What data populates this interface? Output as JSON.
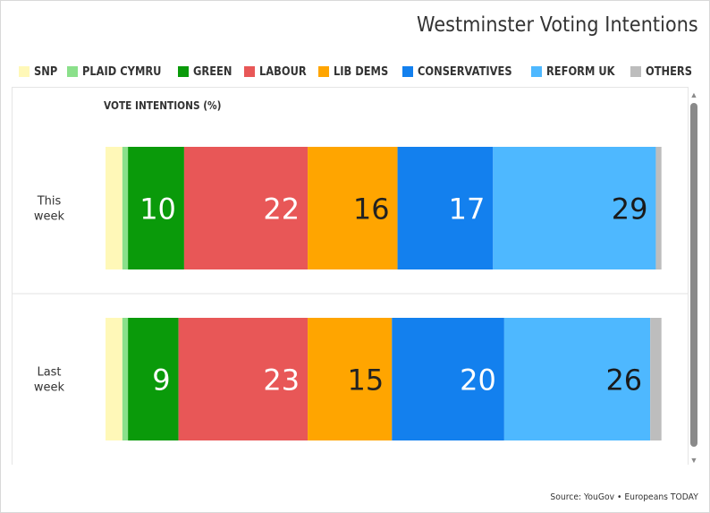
{
  "chart_data": {
    "type": "bar",
    "orientation": "horizontal-stacked",
    "title": "Westminster Voting Intentions",
    "axis_title": "VOTE INTENTIONS (%)",
    "xlim": [
      0,
      100
    ],
    "legend_position": "top-left",
    "categories": [
      "This week",
      "Last week"
    ],
    "category_labels": [
      [
        "This",
        "week"
      ],
      [
        "Last",
        "week"
      ]
    ],
    "series": [
      {
        "name": "SNP",
        "color": "#fff8b8",
        "values": [
          3,
          3
        ]
      },
      {
        "name": "PLAID CYMRU",
        "color": "#8be08b",
        "values": [
          1,
          1
        ]
      },
      {
        "name": "GREEN",
        "color": "#0a9a0a",
        "values": [
          10,
          9
        ]
      },
      {
        "name": "LABOUR",
        "color": "#e85757",
        "values": [
          22,
          23
        ]
      },
      {
        "name": "LIB DEMS",
        "color": "#ffa500",
        "values": [
          16,
          15
        ]
      },
      {
        "name": "CONSERVATIVES",
        "color": "#1380ee",
        "values": [
          17,
          20
        ]
      },
      {
        "name": "REFORM UK",
        "color": "#4eb8ff",
        "values": [
          29,
          26
        ]
      },
      {
        "name": "OTHERS",
        "color": "#bdbdbd",
        "values": [
          1,
          2
        ]
      }
    ],
    "data_labels": [
      [
        null,
        null,
        "10",
        "22",
        "16",
        "17",
        "29",
        null
      ],
      [
        null,
        null,
        "9",
        "23",
        "15",
        "20",
        "26",
        null
      ]
    ]
  },
  "footer": {
    "source": "Source: YouGov • Europeans TODAY"
  },
  "scrollbar": {
    "up_icon": "triangle-up",
    "down_icon": "triangle-down"
  }
}
